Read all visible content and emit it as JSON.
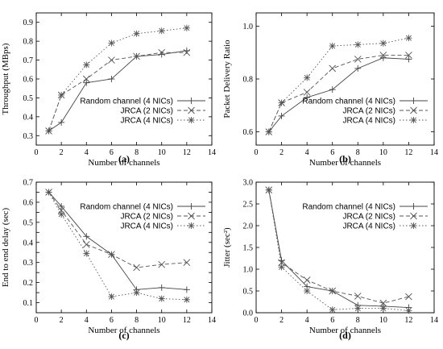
{
  "chart_data": [
    {
      "panel": "(a)",
      "type": "line",
      "xlabel": "Number of channels",
      "ylabel": "Throughput (MBps)",
      "xlim": [
        0,
        14
      ],
      "ylim": [
        0.25,
        0.95
      ],
      "xticks": [
        0,
        2,
        4,
        6,
        8,
        10,
        12,
        14
      ],
      "yticks": [
        0.3,
        0.4,
        0.5,
        0.6,
        0.7,
        0.8,
        0.9
      ],
      "ytick_labels": [
        "0.3",
        "0.4",
        "0.5",
        "0.6",
        "0.7",
        "0.8",
        "0.9"
      ],
      "legend_position": "lower-right",
      "series": [
        {
          "name": "Random channel (4 NICs)",
          "marker": "plus",
          "dash": "solid",
          "x": [
            1,
            2,
            4,
            6,
            8,
            10,
            12
          ],
          "y": [
            0.325,
            0.37,
            0.58,
            0.6,
            0.72,
            0.73,
            0.75
          ]
        },
        {
          "name": "JRCA (2 NICs)",
          "marker": "cross",
          "dash": "dashed",
          "x": [
            1,
            2,
            4,
            6,
            8,
            10,
            12
          ],
          "y": [
            0.325,
            0.515,
            0.6,
            0.7,
            0.72,
            0.74,
            0.74
          ]
        },
        {
          "name": "JRCA (4 NICs)",
          "marker": "star",
          "dash": "dotted",
          "x": [
            1,
            2,
            4,
            6,
            8,
            10,
            12
          ],
          "y": [
            0.325,
            0.515,
            0.675,
            0.79,
            0.84,
            0.855,
            0.87
          ]
        }
      ]
    },
    {
      "panel": "(b)",
      "type": "line",
      "xlabel": "Number of channels",
      "ylabel": "Packet Delivery Ratio",
      "xlim": [
        0,
        14
      ],
      "ylim": [
        0.55,
        1.05
      ],
      "xticks": [
        0,
        2,
        4,
        6,
        8,
        10,
        12,
        14
      ],
      "yticks": [
        0.6,
        0.8,
        1.0
      ],
      "ytick_labels": [
        "0.6",
        "0.8",
        "1.0"
      ],
      "legend_position": "lower-right",
      "series": [
        {
          "name": "Random channel (4 NICs)",
          "marker": "plus",
          "dash": "solid",
          "x": [
            1,
            2,
            4,
            6,
            8,
            10,
            12
          ],
          "y": [
            0.6,
            0.66,
            0.73,
            0.76,
            0.84,
            0.88,
            0.875
          ]
        },
        {
          "name": "JRCA (2 NICs)",
          "marker": "cross",
          "dash": "dashed",
          "x": [
            1,
            2,
            4,
            6,
            8,
            10,
            12
          ],
          "y": [
            0.6,
            0.71,
            0.75,
            0.84,
            0.875,
            0.89,
            0.89
          ]
        },
        {
          "name": "JRCA (4 NICs)",
          "marker": "star",
          "dash": "dotted",
          "x": [
            1,
            2,
            4,
            6,
            8,
            10,
            12
          ],
          "y": [
            0.6,
            0.71,
            0.805,
            0.925,
            0.93,
            0.935,
            0.955
          ]
        }
      ]
    },
    {
      "panel": "(c)",
      "type": "line",
      "xlabel": "Number of channels",
      "ylabel": "End to end delay (sec)",
      "xlim": [
        0,
        14
      ],
      "ylim": [
        0.05,
        0.7
      ],
      "xticks": [
        0,
        2,
        4,
        6,
        8,
        10,
        12,
        14
      ],
      "yticks": [
        0.1,
        0.15,
        0.2,
        0.25,
        0.3,
        0.35,
        0.4,
        0.45,
        0.5,
        0.55,
        0.6,
        0.65,
        0.7
      ],
      "ytick_labels": [
        "0.1",
        "",
        "0.2",
        "",
        "0.3",
        "",
        "0.4",
        "",
        "0.5",
        "",
        "0.6",
        "",
        "0.7"
      ],
      "legend_position": "top-right",
      "series": [
        {
          "name": "Random channel (4 NICs)",
          "marker": "plus",
          "dash": "solid",
          "x": [
            1,
            2,
            4,
            6,
            8,
            10,
            12
          ],
          "y": [
            0.65,
            0.58,
            0.43,
            0.34,
            0.165,
            0.175,
            0.165
          ]
        },
        {
          "name": "JRCA (2 NICs)",
          "marker": "cross",
          "dash": "dashed",
          "x": [
            1,
            2,
            4,
            6,
            8,
            10,
            12
          ],
          "y": [
            0.65,
            0.56,
            0.39,
            0.34,
            0.275,
            0.29,
            0.3
          ]
        },
        {
          "name": "JRCA (4 NICs)",
          "marker": "star",
          "dash": "dotted",
          "x": [
            1,
            2,
            4,
            6,
            8,
            10,
            12
          ],
          "y": [
            0.65,
            0.54,
            0.345,
            0.13,
            0.15,
            0.12,
            0.115
          ]
        }
      ]
    },
    {
      "panel": "(d)",
      "type": "line",
      "xlabel": "Number of channels",
      "ylabel": "Jitter (sec²)",
      "xlim": [
        0,
        14
      ],
      "ylim": [
        0,
        3
      ],
      "xticks": [
        0,
        2,
        4,
        6,
        8,
        10,
        12,
        14
      ],
      "yticks": [
        0,
        0.5,
        1,
        1.5,
        2,
        2.5,
        3
      ],
      "ytick_labels": [
        "0.0",
        "0.5",
        "1.0",
        "1.5",
        "2.0",
        "2.5",
        "3.0"
      ],
      "legend_position": "top-right",
      "series": [
        {
          "name": "Random channel (4 NICs)",
          "marker": "plus",
          "dash": "solid",
          "x": [
            1,
            2,
            4,
            6,
            8,
            10,
            12
          ],
          "y": [
            2.82,
            1.2,
            0.6,
            0.5,
            0.17,
            0.15,
            0.12
          ]
        },
        {
          "name": "JRCA (2 NICs)",
          "marker": "cross",
          "dash": "dashed",
          "x": [
            1,
            2,
            4,
            6,
            8,
            10,
            12
          ],
          "y": [
            2.82,
            1.15,
            0.75,
            0.5,
            0.38,
            0.22,
            0.37
          ]
        },
        {
          "name": "JRCA (4 NICs)",
          "marker": "star",
          "dash": "dotted",
          "x": [
            1,
            2,
            4,
            6,
            8,
            10,
            12
          ],
          "y": [
            2.82,
            1.05,
            0.5,
            0.07,
            0.1,
            0.1,
            0.05
          ]
        }
      ]
    }
  ]
}
